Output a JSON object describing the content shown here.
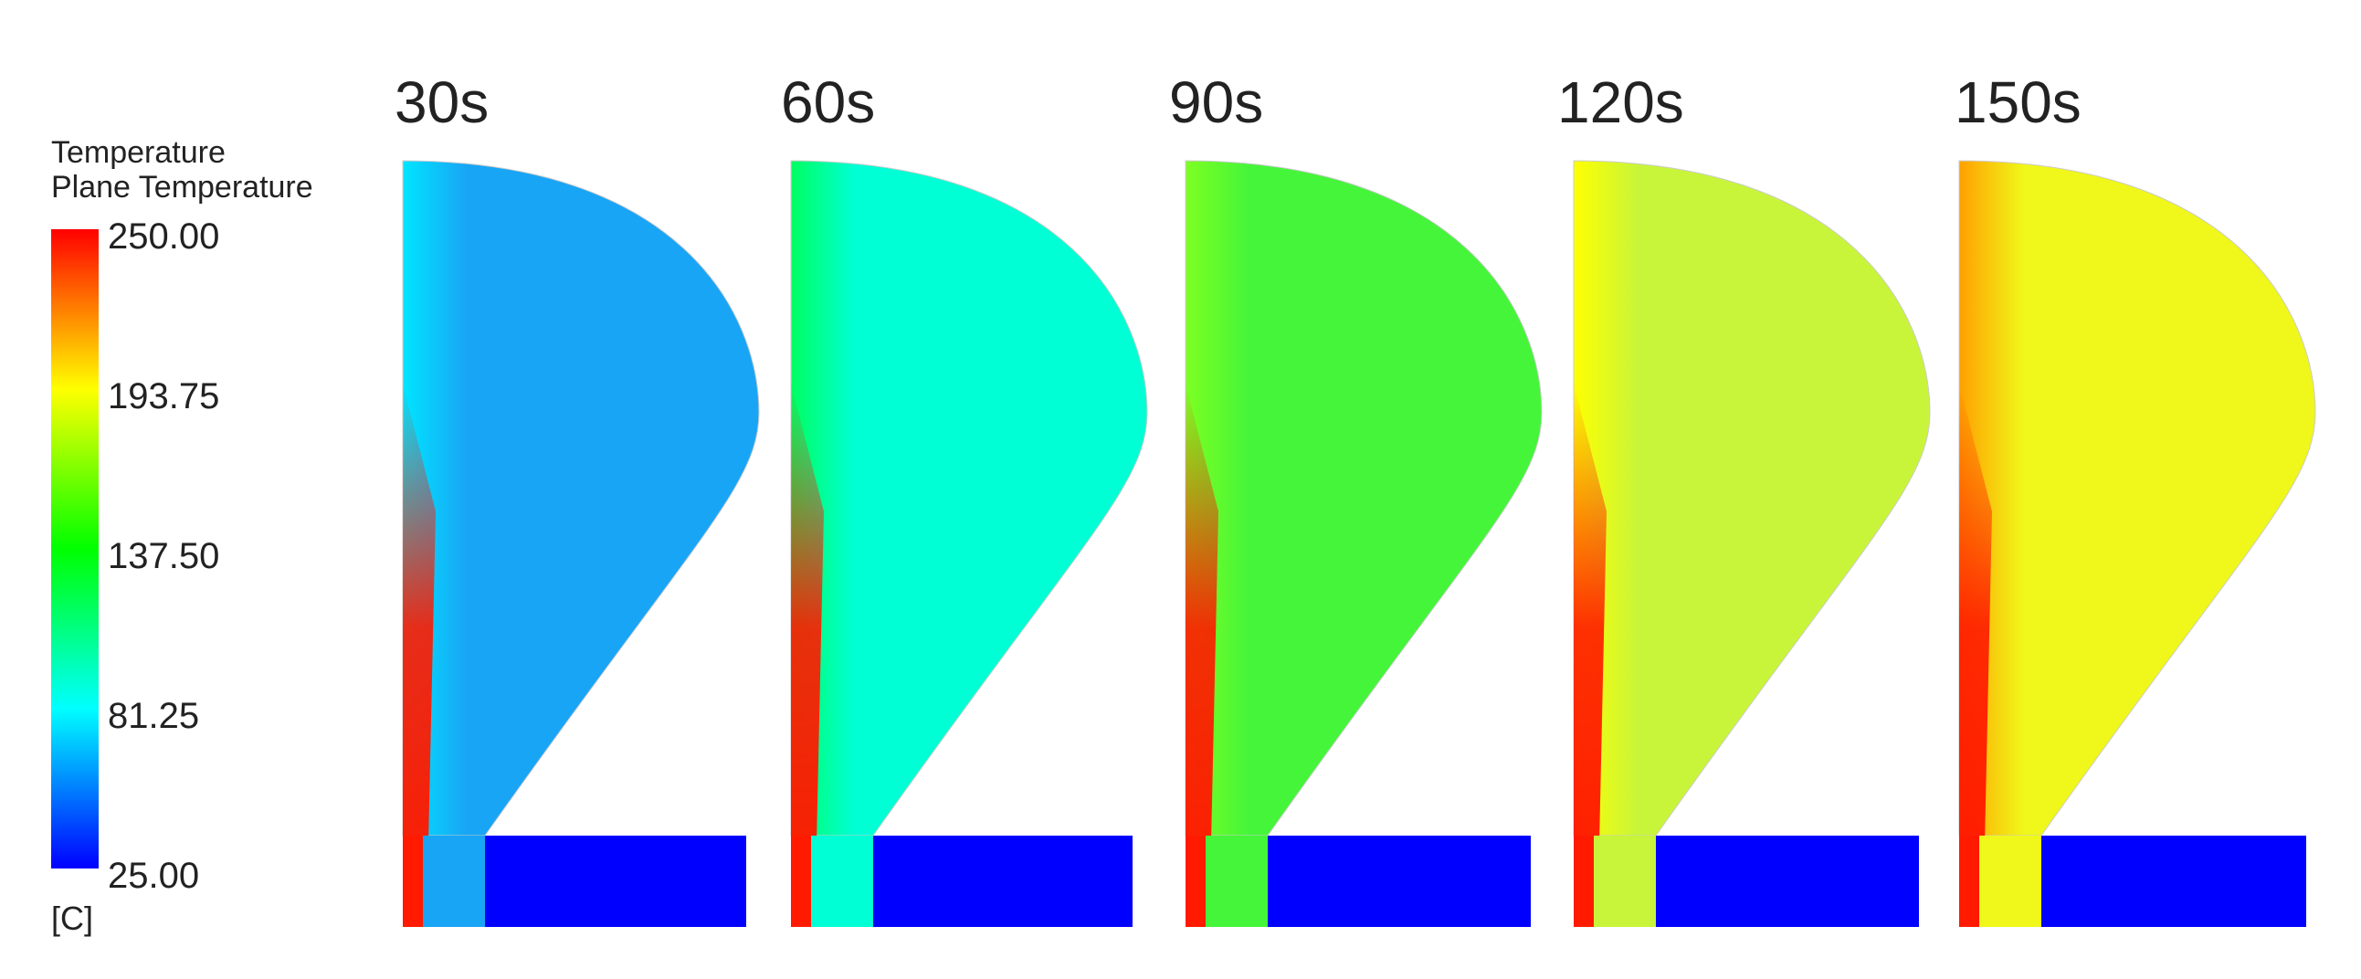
{
  "legend": {
    "title": "Temperature",
    "subtitle": "Plane Temperature",
    "ticks": [
      "250.00",
      "193.75",
      "137.50",
      "81.25",
      "25.00"
    ],
    "unit": "[C]",
    "colormap": [
      "#ff0000",
      "#ffff00",
      "#00ff00",
      "#00ffff",
      "#0000ff"
    ]
  },
  "panels": [
    {
      "time": "30s",
      "body": "#19a5f5",
      "leftEdge": "#00e5ff",
      "hot": "#ff1a00",
      "bottom": "#0000ff"
    },
    {
      "time": "60s",
      "body": "#00ffd5",
      "leftEdge": "#00ff60",
      "hot": "#ff1a00",
      "bottom": "#0000ff"
    },
    {
      "time": "90s",
      "body": "#45f53a",
      "leftEdge": "#7dff22",
      "hot": "#ff1a00",
      "bottom": "#0000ff"
    },
    {
      "time": "120s",
      "body": "#c8f53a",
      "leftEdge": "#ffff00",
      "hot": "#ff1a00",
      "bottom": "#0000ff"
    },
    {
      "time": "150s",
      "body": "#f0f71a",
      "leftEdge": "#ffa000",
      "hot": "#ff1a00",
      "bottom": "#0000ff"
    }
  ]
}
